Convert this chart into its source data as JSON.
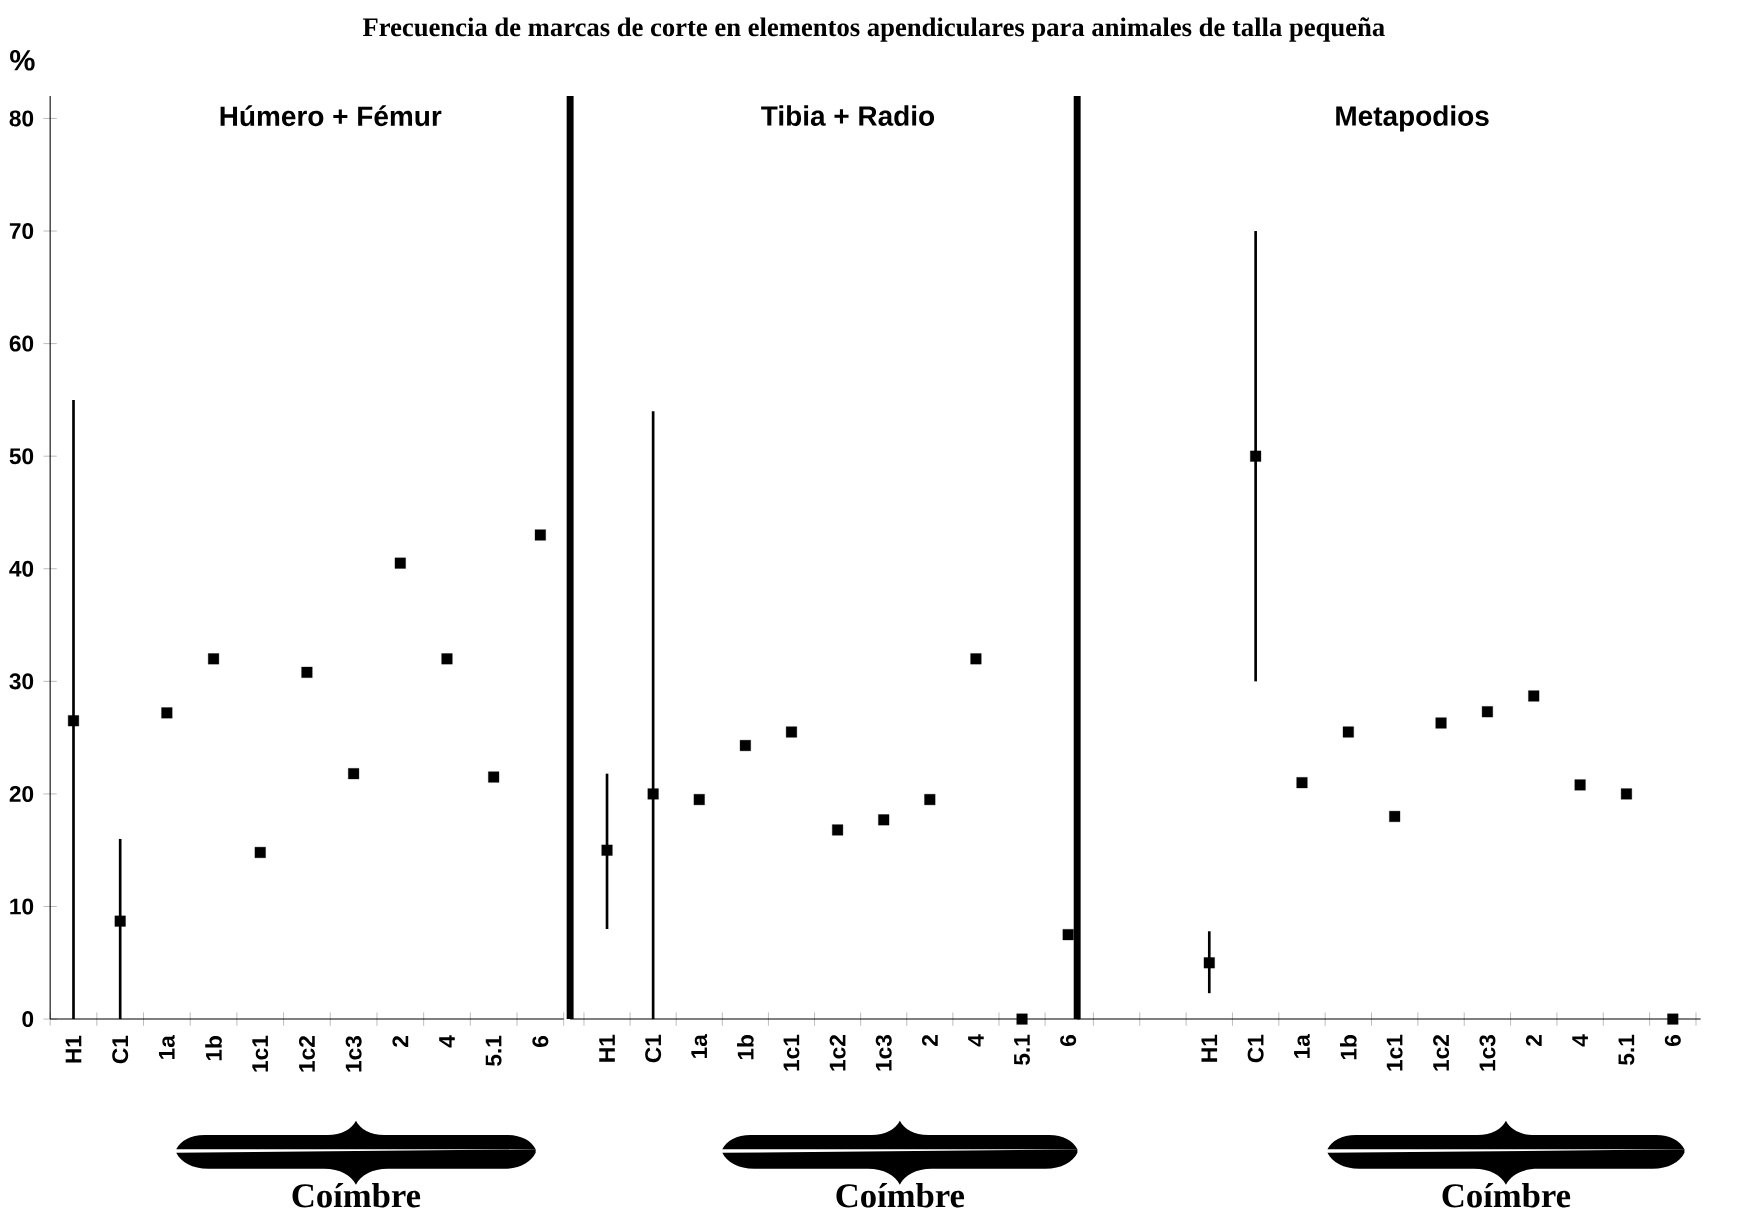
{
  "chart_data": [
    {
      "type": "other",
      "title": "Frecuencia de marcas de corte en elementos apendiculares para animales de talla pequeña"
    },
    {
      "type": "scatter",
      "title": "Húmero + Fémur",
      "ylabel": "%",
      "categories": [
        "H1",
        "C1",
        "1a",
        "1b",
        "1c1",
        "1c2",
        "1c3",
        "2",
        "4",
        "5.1",
        "6"
      ],
      "values": [
        26.5,
        8.7,
        27.2,
        32,
        14.8,
        30.8,
        21.8,
        40.5,
        32,
        21.5,
        43
      ],
      "errors": [
        [
          0,
          55
        ],
        [
          0,
          16
        ],
        null,
        null,
        null,
        null,
        null,
        null,
        null,
        null,
        null
      ],
      "color": "#000000",
      "marker": "square",
      "ylim": [
        0,
        82
      ],
      "yticks": [
        0,
        10,
        20,
        30,
        40,
        50,
        60,
        70,
        80
      ],
      "annotations": [
        "Coímbre"
      ]
    },
    {
      "type": "scatter",
      "title": "Tibia + Radio",
      "categories": [
        "H1",
        "C1",
        "1a",
        "1b",
        "1c1",
        "1c2",
        "1c3",
        "2",
        "4",
        "5.1",
        "6"
      ],
      "values": [
        15,
        20,
        19.5,
        24.3,
        25.5,
        16.8,
        17.7,
        19.5,
        32,
        0,
        7.5
      ],
      "errors": [
        [
          8,
          21.8
        ],
        [
          0,
          54
        ],
        null,
        null,
        null,
        null,
        null,
        null,
        null,
        null,
        null
      ],
      "color": "#000000",
      "marker": "square",
      "ylim": [
        0,
        82
      ],
      "tick_labels": "x",
      "annotations": [
        "Coímbre"
      ]
    },
    {
      "type": "scatter",
      "title": "Metapodios",
      "categories": [
        null,
        null,
        "H1",
        "C1",
        "1a",
        "1b",
        "1c1",
        "1c2",
        "1c3",
        "2",
        "4",
        "5.1",
        "6"
      ],
      "values": [
        null,
        null,
        5,
        50,
        21,
        25.5,
        18,
        26.3,
        27.3,
        28.7,
        20.8,
        20,
        0
      ],
      "errors": [
        null,
        null,
        [
          2.3,
          7.8
        ],
        [
          30,
          70
        ],
        null,
        null,
        null,
        null,
        null,
        null,
        null,
        null,
        null
      ],
      "color": "#000000",
      "marker": "square",
      "ylim": [
        0,
        82
      ],
      "tick_labels": "x",
      "annotations": [
        "Coímbre"
      ]
    }
  ]
}
